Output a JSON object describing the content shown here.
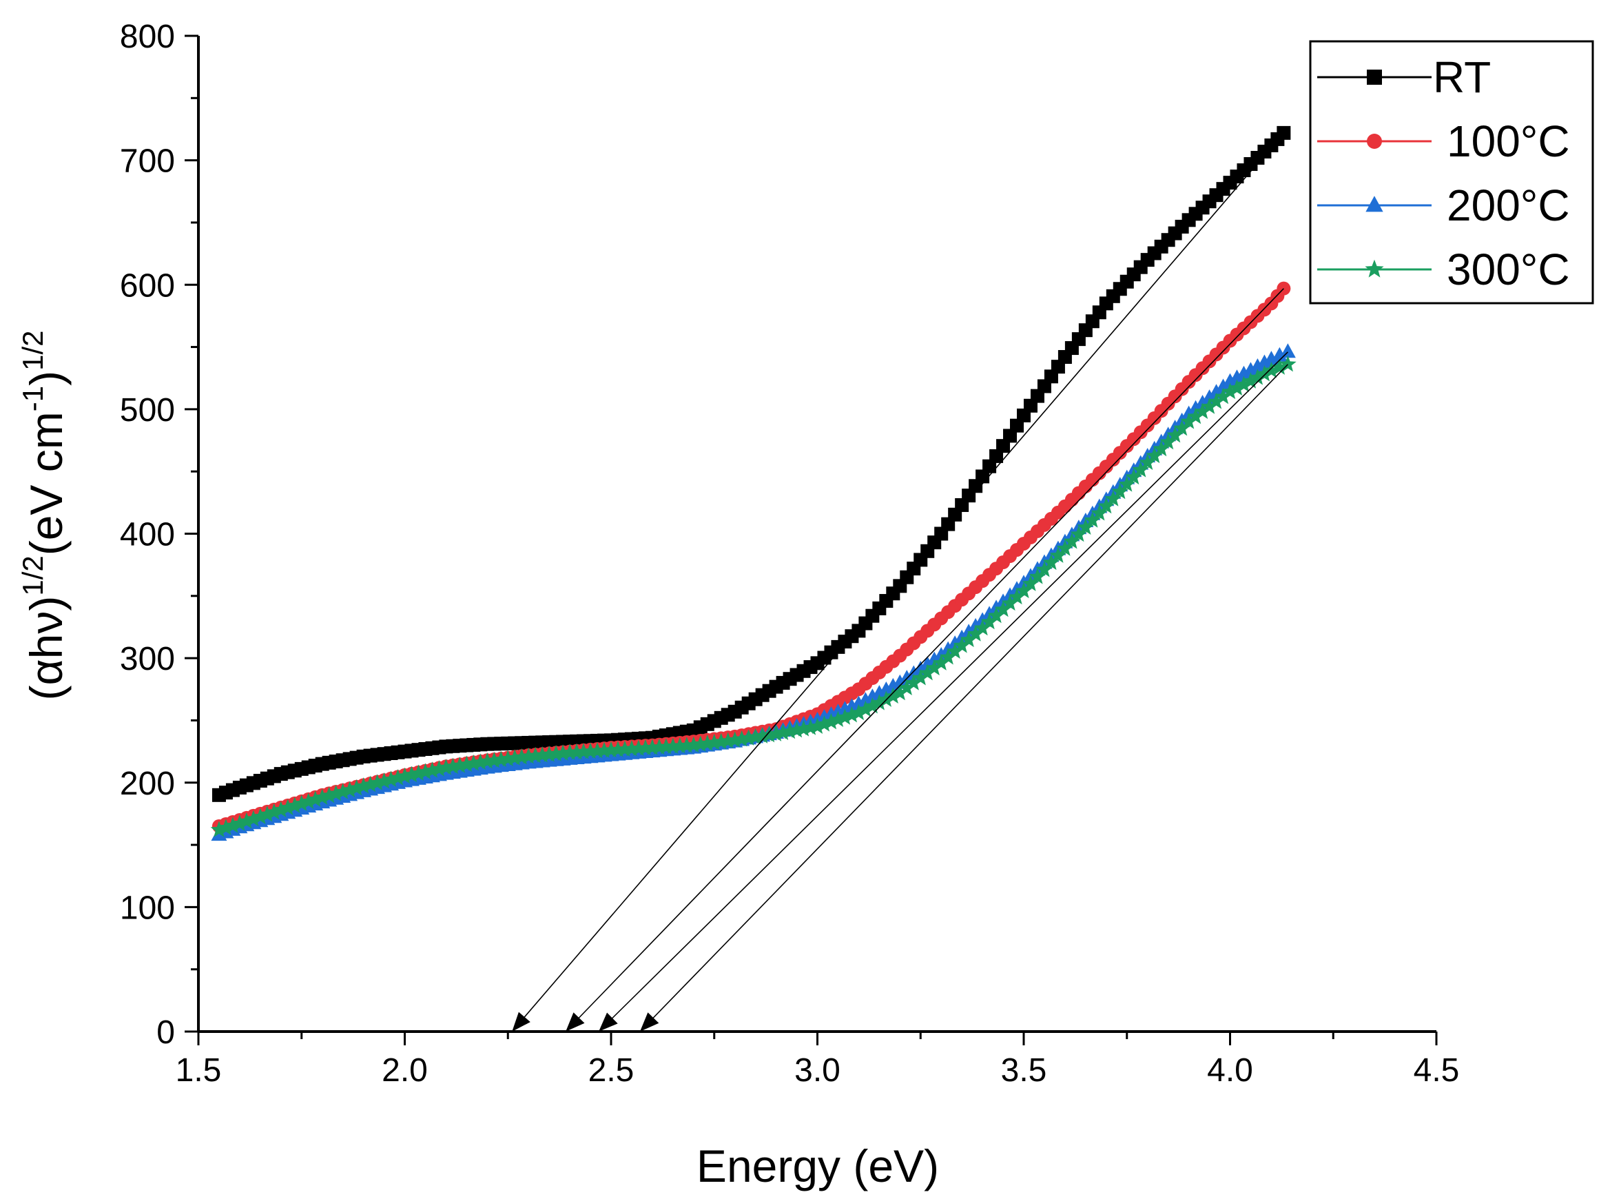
{
  "chart_data": {
    "type": "scatter",
    "title": "",
    "xlabel": "Energy (eV)",
    "ylabel": {
      "main_open": "(αhν)",
      "exp1": "1/2",
      "unit": "(eV cm",
      "exp2": "-1",
      "close": ")",
      "exp3": "1/2"
    },
    "xlim": [
      1.5,
      4.5
    ],
    "ylim": [
      0,
      800
    ],
    "x_ticks": [
      1.5,
      2.0,
      2.5,
      3.0,
      3.5,
      4.0,
      4.5
    ],
    "x_tick_labels": [
      "1.5",
      "2.0",
      "2.5",
      "3.0",
      "3.5",
      "4.0",
      "4.5"
    ],
    "y_ticks": [
      0,
      100,
      200,
      300,
      400,
      500,
      600,
      700,
      800
    ],
    "y_tick_labels": [
      "0",
      "100",
      "200",
      "300",
      "400",
      "500",
      "600",
      "700",
      "800"
    ],
    "grid": false,
    "legend_position": "top-right",
    "series": [
      {
        "name": "RT",
        "color": "#000000",
        "marker": "square",
        "points": [
          [
            1.55,
            190
          ],
          [
            1.6,
            196
          ],
          [
            1.7,
            207
          ],
          [
            1.8,
            215
          ],
          [
            1.9,
            221
          ],
          [
            2.0,
            225
          ],
          [
            2.1,
            229
          ],
          [
            2.2,
            231
          ],
          [
            2.3,
            232
          ],
          [
            2.4,
            233
          ],
          [
            2.5,
            234
          ],
          [
            2.6,
            236
          ],
          [
            2.7,
            242
          ],
          [
            2.8,
            257
          ],
          [
            2.9,
            277
          ],
          [
            3.0,
            296
          ],
          [
            3.1,
            322
          ],
          [
            3.2,
            358
          ],
          [
            3.3,
            400
          ],
          [
            3.4,
            446
          ],
          [
            3.5,
            495
          ],
          [
            3.6,
            542
          ],
          [
            3.7,
            585
          ],
          [
            3.8,
            620
          ],
          [
            3.9,
            652
          ],
          [
            4.0,
            682
          ],
          [
            4.1,
            712
          ],
          [
            4.13,
            722
          ]
        ]
      },
      {
        "name": "100°C",
        "color": "#e8333a",
        "marker": "circle",
        "points": [
          [
            1.55,
            165
          ],
          [
            1.6,
            170
          ],
          [
            1.7,
            180
          ],
          [
            1.8,
            190
          ],
          [
            1.9,
            198
          ],
          [
            2.0,
            206
          ],
          [
            2.1,
            213
          ],
          [
            2.2,
            218
          ],
          [
            2.3,
            222
          ],
          [
            2.4,
            225
          ],
          [
            2.5,
            228
          ],
          [
            2.6,
            230
          ],
          [
            2.7,
            233
          ],
          [
            2.8,
            237
          ],
          [
            2.9,
            243
          ],
          [
            3.0,
            255
          ],
          [
            3.1,
            275
          ],
          [
            3.2,
            302
          ],
          [
            3.3,
            332
          ],
          [
            3.4,
            362
          ],
          [
            3.5,
            392
          ],
          [
            3.6,
            422
          ],
          [
            3.7,
            454
          ],
          [
            3.8,
            487
          ],
          [
            3.9,
            522
          ],
          [
            4.0,
            555
          ],
          [
            4.1,
            585
          ],
          [
            4.13,
            597
          ]
        ]
      },
      {
        "name": "200°C",
        "color": "#1f6fd6",
        "marker": "triangle",
        "points": [
          [
            1.55,
            158
          ],
          [
            1.6,
            164
          ],
          [
            1.7,
            174
          ],
          [
            1.8,
            184
          ],
          [
            1.9,
            193
          ],
          [
            2.0,
            201
          ],
          [
            2.1,
            207
          ],
          [
            2.2,
            212
          ],
          [
            2.3,
            216
          ],
          [
            2.4,
            219
          ],
          [
            2.5,
            222
          ],
          [
            2.6,
            225
          ],
          [
            2.7,
            228
          ],
          [
            2.8,
            233
          ],
          [
            2.9,
            240
          ],
          [
            3.0,
            250
          ],
          [
            3.1,
            263
          ],
          [
            3.2,
            280
          ],
          [
            3.3,
            302
          ],
          [
            3.4,
            330
          ],
          [
            3.5,
            360
          ],
          [
            3.6,
            393
          ],
          [
            3.7,
            427
          ],
          [
            3.8,
            462
          ],
          [
            3.9,
            496
          ],
          [
            4.0,
            522
          ],
          [
            4.1,
            540
          ],
          [
            4.14,
            546
          ]
        ]
      },
      {
        "name": "300°C",
        "color": "#1a9e5f",
        "marker": "star",
        "points": [
          [
            1.55,
            162
          ],
          [
            1.6,
            167
          ],
          [
            1.7,
            178
          ],
          [
            1.8,
            188
          ],
          [
            1.9,
            197
          ],
          [
            2.0,
            205
          ],
          [
            2.1,
            212
          ],
          [
            2.2,
            217
          ],
          [
            2.3,
            221
          ],
          [
            2.4,
            224
          ],
          [
            2.5,
            226
          ],
          [
            2.6,
            228
          ],
          [
            2.7,
            230
          ],
          [
            2.8,
            234
          ],
          [
            2.9,
            239
          ],
          [
            3.0,
            245
          ],
          [
            3.1,
            256
          ],
          [
            3.2,
            272
          ],
          [
            3.3,
            296
          ],
          [
            3.4,
            324
          ],
          [
            3.5,
            354
          ],
          [
            3.6,
            388
          ],
          [
            3.7,
            422
          ],
          [
            3.8,
            457
          ],
          [
            3.9,
            490
          ],
          [
            4.0,
            514
          ],
          [
            4.1,
            531
          ],
          [
            4.14,
            536
          ]
        ]
      }
    ],
    "tangent_lines": [
      {
        "from": [
          4.13,
          722
        ],
        "to": [
          2.26,
          0
        ]
      },
      {
        "from": [
          4.13,
          597
        ],
        "to": [
          2.39,
          0
        ]
      },
      {
        "from": [
          4.14,
          546
        ],
        "to": [
          2.47,
          0
        ]
      },
      {
        "from": [
          4.14,
          536
        ],
        "to": [
          2.57,
          0
        ]
      }
    ]
  }
}
